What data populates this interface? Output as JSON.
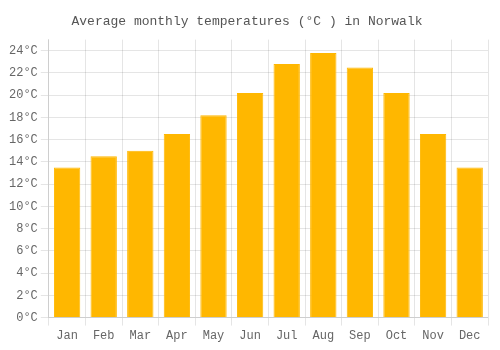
{
  "chart_data": {
    "type": "bar",
    "title": "Average monthly temperatures (°C ) in Norwalk",
    "categories": [
      "Jan",
      "Feb",
      "Mar",
      "Apr",
      "May",
      "Jun",
      "Jul",
      "Aug",
      "Sep",
      "Oct",
      "Nov",
      "Dec"
    ],
    "values": [
      13.5,
      14.5,
      15.0,
      16.5,
      18.2,
      20.2,
      22.8,
      23.8,
      22.5,
      20.2,
      16.5,
      13.5
    ],
    "color": "#FFB700",
    "ylim": [
      0,
      25
    ],
    "yticks": [
      {
        "value": 0,
        "label": "0°C"
      },
      {
        "value": 2,
        "label": "2°C"
      },
      {
        "value": 4,
        "label": "4°C"
      },
      {
        "value": 6,
        "label": "6°C"
      },
      {
        "value": 8,
        "label": "8°C"
      },
      {
        "value": 10,
        "label": "10°C"
      },
      {
        "value": 12,
        "label": "12°C"
      },
      {
        "value": 14,
        "label": "14°C"
      },
      {
        "value": 16,
        "label": "16°C"
      },
      {
        "value": 18,
        "label": "18°C"
      },
      {
        "value": 20,
        "label": "20°C"
      },
      {
        "value": 22,
        "label": "22°C"
      },
      {
        "value": 24,
        "label": "24°C"
      }
    ],
    "grid": true
  }
}
